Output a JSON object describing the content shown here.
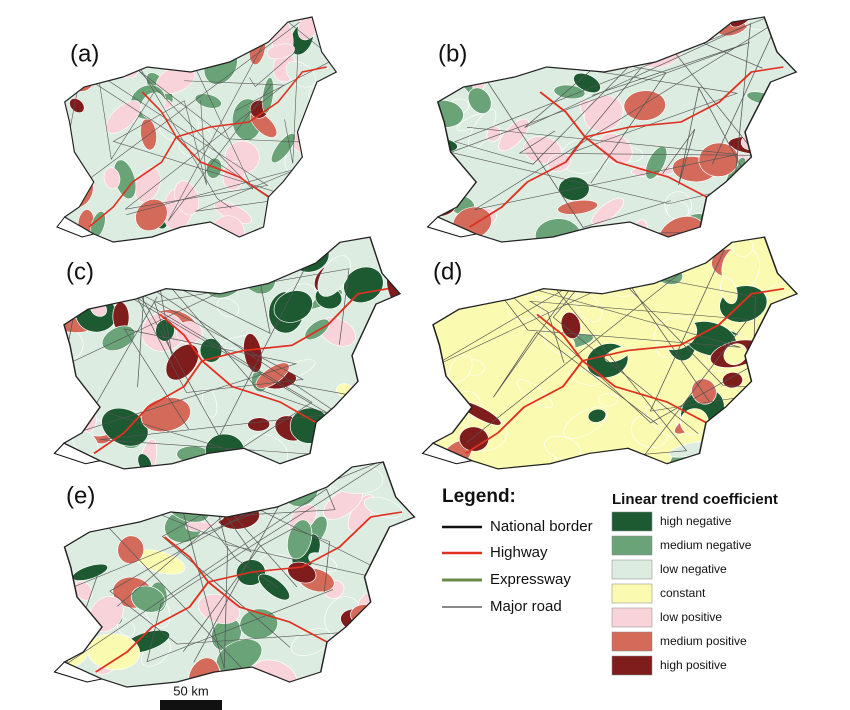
{
  "panels": [
    {
      "label": "(a)"
    },
    {
      "label": "(b)"
    },
    {
      "label": "(c)"
    },
    {
      "label": "(d)"
    },
    {
      "label": "(e)"
    }
  ],
  "legend": {
    "title": "Legend:",
    "items": [
      {
        "label": "National border"
      },
      {
        "label": "Highway"
      },
      {
        "label": "Expressway"
      },
      {
        "label": "Major road"
      }
    ]
  },
  "classes": {
    "title": "Linear trend coefficient",
    "items": [
      {
        "label": "high negative",
        "color": "#1d5a32"
      },
      {
        "label": "medium negative",
        "color": "#6aa377"
      },
      {
        "label": "low negative",
        "color": "#dcece0"
      },
      {
        "label": "constant",
        "color": "#fafab0"
      },
      {
        "label": "low positive",
        "color": "#f8d3da"
      },
      {
        "label": "medium positive",
        "color": "#d36a5a"
      },
      {
        "label": "high positive",
        "color": "#7f1d1d"
      }
    ]
  },
  "scale_bar": {
    "label": "50 km"
  }
}
